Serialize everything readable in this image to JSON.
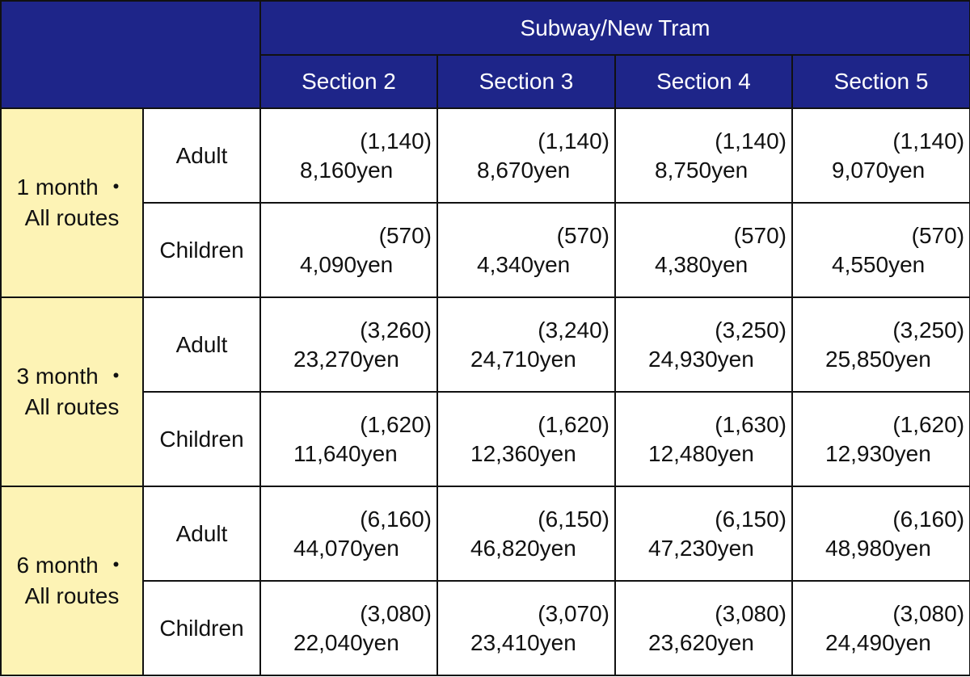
{
  "header": {
    "group_label": "Subway/New Tram",
    "sections": [
      "Section 2",
      "Section 3",
      "Section 4",
      "Section 5"
    ]
  },
  "periods": [
    {
      "label_line1": "1 month ・",
      "label_line2": "All routes",
      "rows": [
        {
          "rider": "Adult",
          "fares": [
            {
              "disc": "(1,140)",
              "price": "8,160yen"
            },
            {
              "disc": "(1,140)",
              "price": "8,670yen"
            },
            {
              "disc": "(1,140)",
              "price": "8,750yen"
            },
            {
              "disc": "(1,140)",
              "price": "9,070yen"
            }
          ]
        },
        {
          "rider": "Children",
          "fares": [
            {
              "disc": "(570)",
              "price": "4,090yen"
            },
            {
              "disc": "(570)",
              "price": "4,340yen"
            },
            {
              "disc": "(570)",
              "price": "4,380yen"
            },
            {
              "disc": "(570)",
              "price": "4,550yen"
            }
          ]
        }
      ]
    },
    {
      "label_line1": "3 month ・",
      "label_line2": "All routes",
      "rows": [
        {
          "rider": "Adult",
          "fares": [
            {
              "disc": "(3,260)",
              "price": "23,270yen"
            },
            {
              "disc": "(3,240)",
              "price": "24,710yen"
            },
            {
              "disc": "(3,250)",
              "price": "24,930yen"
            },
            {
              "disc": "(3,250)",
              "price": "25,850yen"
            }
          ]
        },
        {
          "rider": "Children",
          "fares": [
            {
              "disc": "(1,620)",
              "price": "11,640yen"
            },
            {
              "disc": "(1,620)",
              "price": "12,360yen"
            },
            {
              "disc": "(1,630)",
              "price": "12,480yen"
            },
            {
              "disc": "(1,620)",
              "price": "12,930yen"
            }
          ]
        }
      ]
    },
    {
      "label_line1": "6 month ・",
      "label_line2": "All routes",
      "rows": [
        {
          "rider": "Adult",
          "fares": [
            {
              "disc": "(6,160)",
              "price": "44,070yen"
            },
            {
              "disc": "(6,150)",
              "price": "46,820yen"
            },
            {
              "disc": "(6,150)",
              "price": "47,230yen"
            },
            {
              "disc": "(6,160)",
              "price": "48,980yen"
            }
          ]
        },
        {
          "rider": "Children",
          "fares": [
            {
              "disc": "(3,080)",
              "price": "22,040yen"
            },
            {
              "disc": "(3,070)",
              "price": "23,410yen"
            },
            {
              "disc": "(3,080)",
              "price": "23,620yen"
            },
            {
              "disc": "(3,080)",
              "price": "24,490yen"
            }
          ]
        }
      ]
    }
  ],
  "colors": {
    "header_bg": "#1e2589",
    "period_bg": "#fdf3b5",
    "border": "#111111"
  }
}
